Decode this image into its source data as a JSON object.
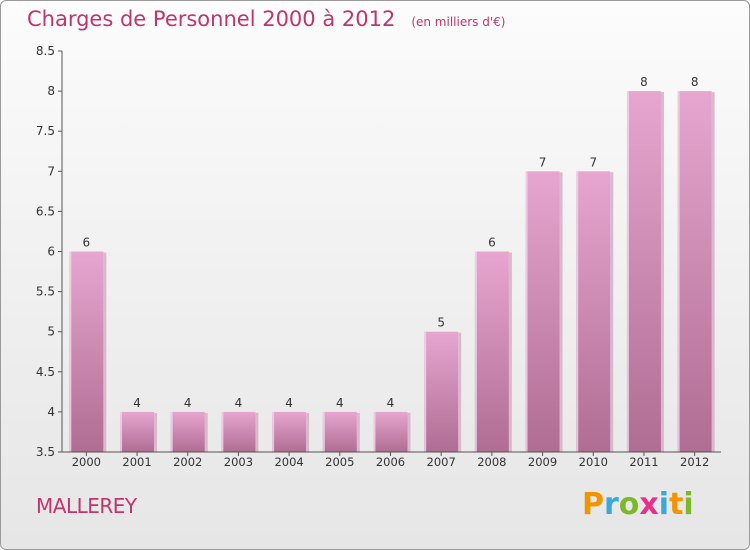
{
  "header": {
    "title": "Charges de Personnel 2000 à 2012",
    "unit": "(en milliers d'€)"
  },
  "commune": "MALLEREY",
  "brand": {
    "letters": [
      "P",
      "r",
      "o",
      "x",
      "i",
      "t",
      "i"
    ],
    "colors": [
      "#f29400",
      "#3aa8dc",
      "#7cb92a",
      "#e8308a",
      "#3aa8dc",
      "#f29400",
      "#7cb92a"
    ]
  },
  "colors": {
    "accent": "#c0356e",
    "bar_top": "#e6a6cf",
    "bar_bottom": "#b06d94"
  },
  "chart_data": {
    "type": "bar",
    "title": "Charges de Personnel 2000 à 2012",
    "subtitle": "(en milliers d'€)",
    "categories": [
      "2000",
      "2001",
      "2002",
      "2003",
      "2004",
      "2005",
      "2006",
      "2007",
      "2008",
      "2009",
      "2010",
      "2011",
      "2012"
    ],
    "values": [
      6,
      4,
      4,
      4,
      4,
      4,
      4,
      5,
      6,
      7,
      7,
      8,
      8
    ],
    "data_labels": [
      "6",
      "4",
      "4",
      "4",
      "4",
      "4",
      "4",
      "5",
      "6",
      "7",
      "7",
      "8",
      "8"
    ],
    "ylim": [
      3.5,
      8.5
    ],
    "yticks": [
      "3.5",
      "4",
      "4.5",
      "5",
      "5.5",
      "6",
      "6.5",
      "7",
      "7.5",
      "8",
      "8.5"
    ],
    "grid": false,
    "legend": "none"
  }
}
